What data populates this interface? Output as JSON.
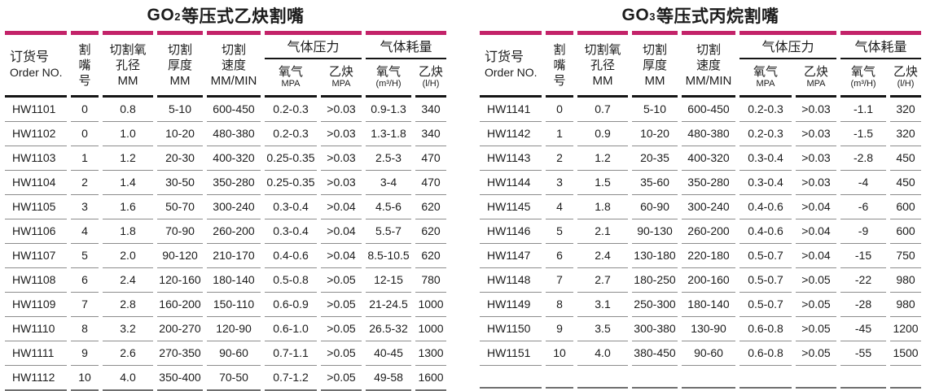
{
  "colors": {
    "accent": "#c32369",
    "header_rule": "#151515",
    "row_rule": "#8c8c8c",
    "table_bottom_rule": "#6f6f6f"
  },
  "tables": [
    {
      "id": "go2-acetylene",
      "title": {
        "prefix": "GO",
        "subscript": "2",
        "suffix": " 等压式乙炔割嘴"
      },
      "header": {
        "order_no": {
          "line1": "订货号",
          "line2": "Order NO."
        },
        "nozzle_no": {
          "line1": "割",
          "line2": "嘴",
          "line3": "号"
        },
        "oxygen_bore": {
          "line1": "切割氧",
          "line2": "孔径",
          "line3": "MM"
        },
        "thickness": {
          "line1": "切割",
          "line2": "厚度",
          "line3": "MM"
        },
        "speed": {
          "line1": "切割",
          "line2": "速度",
          "line3": "MM/MIN"
        },
        "gas_pressure": "气体压力",
        "gas_consumption": "气体耗量",
        "press_oxygen": {
          "line1": "氧气",
          "line2": "MPA"
        },
        "press_acetylene": {
          "line1": "乙炔",
          "line2": "MPA"
        },
        "cons_oxygen": {
          "line1": "氧气",
          "line2": "(m³/H)"
        },
        "cons_acetylene": {
          "line1": "乙炔",
          "line2": "(l/H)"
        }
      },
      "trailing_empty_row": false,
      "rows": [
        [
          "HW1101",
          "0",
          "0.8",
          "5-10",
          "600-450",
          "0.2-0.3",
          ">0.03",
          "0.9-1.3",
          "340"
        ],
        [
          "HW1102",
          "0",
          "1.0",
          "10-20",
          "480-380",
          "0.2-0.3",
          ">0.03",
          "1.3-1.8",
          "340"
        ],
        [
          "HW1103",
          "1",
          "1.2",
          "20-30",
          "400-320",
          "0.25-0.35",
          ">0.03",
          "2.5-3",
          "470"
        ],
        [
          "HW1104",
          "2",
          "1.4",
          "30-50",
          "350-280",
          "0.25-0.35",
          ">0.03",
          "3-4",
          "470"
        ],
        [
          "HW1105",
          "3",
          "1.6",
          "50-70",
          "300-240",
          "0.3-0.4",
          ">0.04",
          "4.5-6",
          "620"
        ],
        [
          "HW1106",
          "4",
          "1.8",
          "70-90",
          "260-200",
          "0.3-0.4",
          ">0.04",
          "5.5-7",
          "620"
        ],
        [
          "HW1107",
          "5",
          "2.0",
          "90-120",
          "210-170",
          "0.4-0.6",
          ">0.04",
          "8.5-10.5",
          "620"
        ],
        [
          "HW1108",
          "6",
          "2.4",
          "120-160",
          "180-140",
          "0.5-0.8",
          ">0.05",
          "12-15",
          "780"
        ],
        [
          "HW1109",
          "7",
          "2.8",
          "160-200",
          "150-110",
          "0.6-0.9",
          ">0.05",
          "21-24.5",
          "1000"
        ],
        [
          "HW1110",
          "8",
          "3.2",
          "200-270",
          "120-90",
          "0.6-1.0",
          ">0.05",
          "26.5-32",
          "1000"
        ],
        [
          "HW1111",
          "9",
          "2.6",
          "270-350",
          "90-60",
          "0.7-1.1",
          ">0.05",
          "40-45",
          "1300"
        ],
        [
          "HW1112",
          "10",
          "4.0",
          "350-400",
          "70-50",
          "0.7-1.2",
          ">0.05",
          "49-58",
          "1600"
        ]
      ]
    },
    {
      "id": "go3-propane",
      "title": {
        "prefix": "GO",
        "subscript": "3",
        "suffix": " 等压式丙烷割嘴"
      },
      "header": {
        "order_no": {
          "line1": "订货号",
          "line2": "Order NO."
        },
        "nozzle_no": {
          "line1": "割",
          "line2": "嘴",
          "line3": "号"
        },
        "oxygen_bore": {
          "line1": "切割氧",
          "line2": "孔径",
          "line3": "MM"
        },
        "thickness": {
          "line1": "切割",
          "line2": "厚度",
          "line3": "MM"
        },
        "speed": {
          "line1": "切割",
          "line2": "速度",
          "line3": "MM/MIN"
        },
        "gas_pressure": "气体压力",
        "gas_consumption": "气体耗量",
        "press_oxygen": {
          "line1": "氧气",
          "line2": "MPA"
        },
        "press_acetylene": {
          "line1": "乙炔",
          "line2": "MPA"
        },
        "cons_oxygen": {
          "line1": "氧气",
          "line2": "(m³/H)"
        },
        "cons_acetylene": {
          "line1": "乙炔",
          "line2": "(l/H)"
        }
      },
      "trailing_empty_row": true,
      "rows": [
        [
          "HW1141",
          "0",
          "0.7",
          "5-10",
          "600-450",
          "0.2-0.3",
          ">0.03",
          "-1.1",
          "320"
        ],
        [
          "HW1142",
          "1",
          "0.9",
          "10-20",
          "480-380",
          "0.2-0.3",
          ">0.03",
          "-1.5",
          "320"
        ],
        [
          "HW1143",
          "2",
          "1.2",
          "20-35",
          "400-320",
          "0.3-0.4",
          ">0.03",
          "-2.8",
          "450"
        ],
        [
          "HW1144",
          "3",
          "1.5",
          "35-60",
          "350-280",
          "0.3-0.4",
          ">0.03",
          "-4",
          "450"
        ],
        [
          "HW1145",
          "4",
          "1.8",
          "60-90",
          "300-240",
          "0.4-0.6",
          ">0.04",
          "-6",
          "600"
        ],
        [
          "HW1146",
          "5",
          "2.1",
          "90-130",
          "260-200",
          "0.4-0.6",
          ">0.04",
          "-9",
          "600"
        ],
        [
          "HW1147",
          "6",
          "2.4",
          "130-180",
          "220-180",
          "0.5-0.7",
          ">0.04",
          "-15",
          "750"
        ],
        [
          "HW1148",
          "7",
          "2.7",
          "180-250",
          "200-160",
          "0.5-0.7",
          ">0.05",
          "-22",
          "980"
        ],
        [
          "HW1149",
          "8",
          "3.1",
          "250-300",
          "180-140",
          "0.5-0.7",
          ">0.05",
          "-28",
          "980"
        ],
        [
          "HW1150",
          "9",
          "3.5",
          "300-380",
          "130-90",
          "0.6-0.8",
          ">0.05",
          "-45",
          "1200"
        ],
        [
          "HW1151",
          "10",
          "4.0",
          "380-450",
          "90-60",
          "0.6-0.8",
          ">0.05",
          "-55",
          "1500"
        ]
      ]
    }
  ]
}
